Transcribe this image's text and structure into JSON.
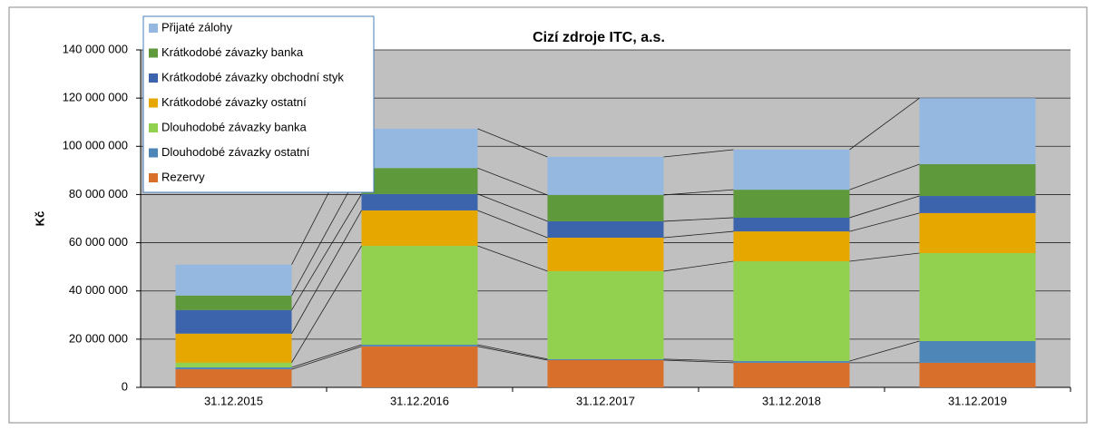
{
  "chart_data": {
    "type": "stacked_bar",
    "title": "Cizí zdroje ITC, a.s.",
    "y_label": "Kč",
    "categories": [
      "31.12.2015",
      "31.12.2016",
      "31.12.2017",
      "31.12.2018",
      "31.12.2019"
    ],
    "series": [
      {
        "name": "Rezervy",
        "color": "#d86f2b",
        "values": [
          7.5,
          17,
          11.3,
          10.2,
          10.2
        ]
      },
      {
        "name": "Dlouhodobé závazky ostatní",
        "color": "#4f86b8",
        "values": [
          0.8,
          0.7,
          0.4,
          0.7,
          9
        ]
      },
      {
        "name": "Dlouhodobé závazky banka",
        "color": "#92d050",
        "values": [
          2,
          41,
          36.5,
          41.4,
          36.5
        ]
      },
      {
        "name": "Krátkodobé závazky ostatní",
        "color": "#e6a800",
        "values": [
          12,
          14.7,
          13.9,
          12.4,
          16.6
        ]
      },
      {
        "name": "Krátkodobé závazky obchodní styk",
        "color": "#3c64ad",
        "values": [
          9.8,
          6.8,
          6.8,
          5.7,
          7.1
        ]
      },
      {
        "name": "Krátkodobé závazky banka",
        "color": "#5e993b",
        "values": [
          6,
          10.8,
          10.9,
          11.6,
          13.2
        ]
      },
      {
        "name": "Přijaté zálohy",
        "color": "#95b8e0",
        "values": [
          12.8,
          16.3,
          15.8,
          16.6,
          27.4
        ]
      }
    ],
    "ylim": [
      0,
      140
    ],
    "yticks": [
      {
        "value": 0,
        "label": "0"
      },
      {
        "value": 20,
        "label": "20 000 000"
      },
      {
        "value": 40,
        "label": "40 000 000"
      },
      {
        "value": 60,
        "label": "60 000 000"
      },
      {
        "value": 80,
        "label": "80 000 000"
      },
      {
        "value": 100,
        "label": "100 000 000"
      },
      {
        "value": 120,
        "label": "120 000 000"
      },
      {
        "value": 140,
        "label": "140 000 000"
      }
    ],
    "grid": true
  }
}
